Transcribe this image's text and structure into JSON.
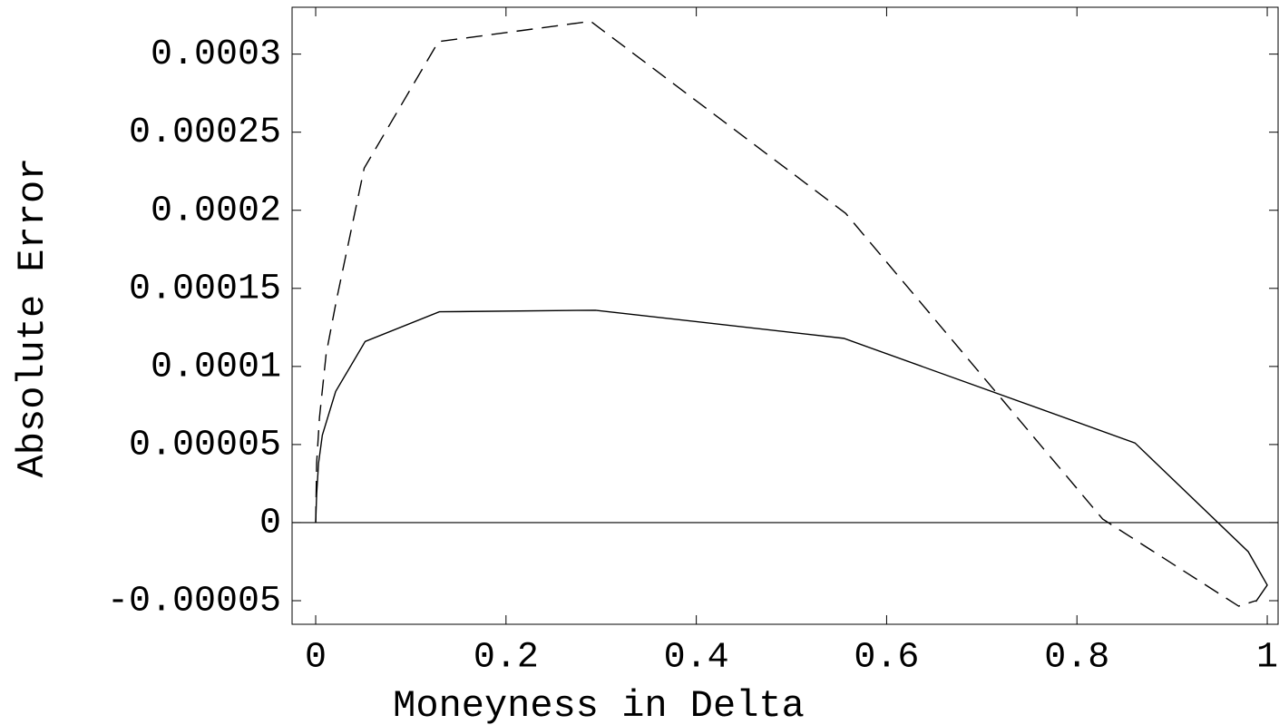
{
  "chart_data": {
    "type": "line",
    "x_label": "Moneyness in Delta",
    "y_label": "Absolute Error",
    "xlim": [
      -0.0248,
      1.0114
    ],
    "ylim": [
      -6.51e-05,
      0.00033
    ],
    "xticks": [
      0,
      0.2,
      0.4,
      0.6,
      0.8,
      1
    ],
    "yticks": [
      -5e-05,
      0,
      5e-05,
      0.0001,
      0.00015,
      0.0002,
      0.00025,
      0.0003
    ],
    "zero_line": true,
    "series": [
      {
        "color": "#000000",
        "style": "solid",
        "x": [
          0,
          0.001,
          0.003,
          0.007,
          0.021,
          0.052,
          0.13,
          0.294,
          0.555,
          0.861,
          0.98,
          1.0,
          0.988
        ],
        "values": [
          0,
          1.8e-05,
          3.8e-05,
          5.6e-05,
          8.4e-05,
          0.000116,
          0.000135,
          0.000136,
          0.000118,
          5.1e-05,
          -1.86e-05,
          -4e-05,
          -5.06e-05
        ]
      },
      {
        "color": "#000000",
        "style": "dashed",
        "x": [
          0,
          0.001,
          0.004,
          0.011,
          0.022,
          0.051,
          0.129,
          0.289,
          0.557,
          0.827,
          0.97,
          0.988
        ],
        "values": [
          0,
          3.8e-05,
          6.74e-05,
          0.000108,
          0.000143,
          0.000227,
          0.000308,
          0.000321,
          0.000198,
          2.3e-06,
          -5.35e-05,
          -5e-05
        ]
      }
    ]
  }
}
